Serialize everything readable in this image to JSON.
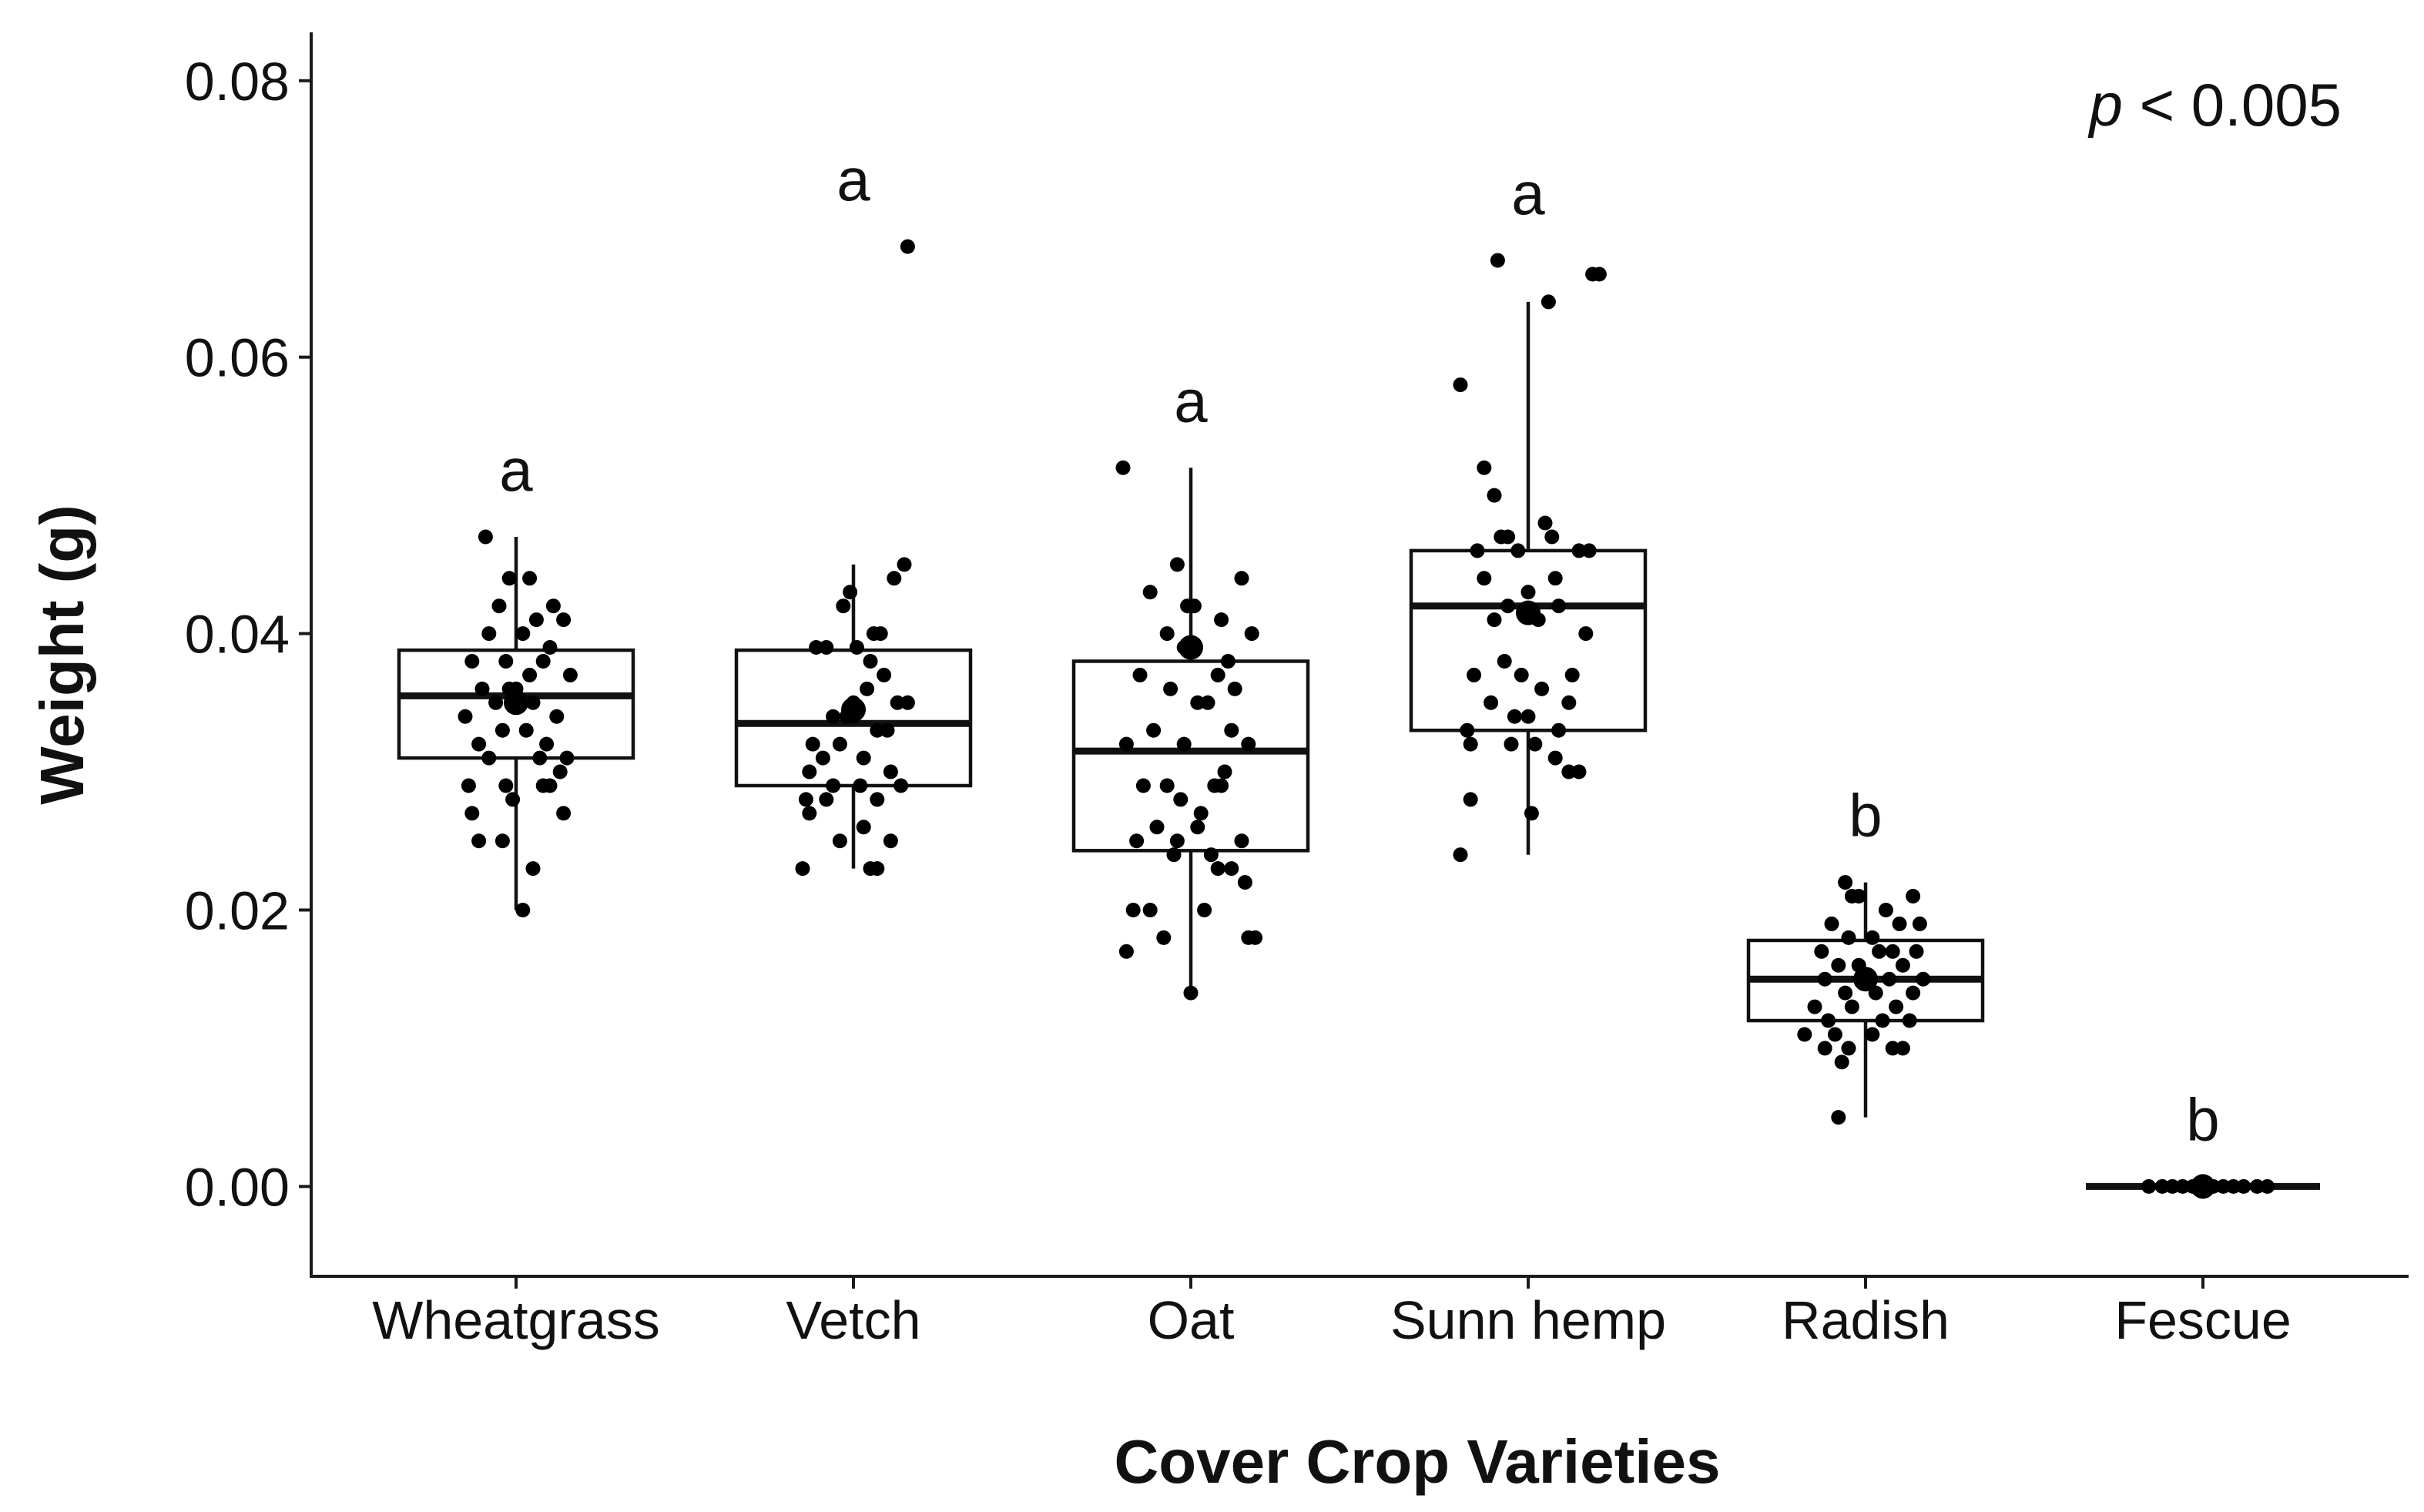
{
  "chart_data": {
    "type": "boxplot",
    "xlabel": "Cover Crop Varieties",
    "ylabel": "Weight (g)",
    "ylim": [
      -0.0065,
      0.0835
    ],
    "yticks": [
      0.0,
      0.02,
      0.04,
      0.06,
      0.08
    ],
    "ytick_labels": [
      "0.00",
      "0.02",
      "0.04",
      "0.06",
      "0.08"
    ],
    "annotation": {
      "p_label": "p",
      "p_rest": "< 0.005"
    },
    "colors": {
      "box_fill": "#ffffff",
      "stroke": "#111111",
      "points": "#000000"
    },
    "categories": [
      "Wheatgrass",
      "Vetch",
      "Oat",
      "Sunn hemp",
      "Radish",
      "Fescue"
    ],
    "groups": [
      {
        "name": "Wheatgrass",
        "letter": "a",
        "whisker_low": 0.02,
        "q1": 0.031,
        "median": 0.0355,
        "q3": 0.0388,
        "whisker_high": 0.047,
        "mean": 0.035,
        "points": [
          [
            -0.09,
            0.047
          ],
          [
            0.04,
            0.044
          ],
          [
            -0.02,
            0.044
          ],
          [
            0.11,
            0.042
          ],
          [
            0.06,
            0.041
          ],
          [
            -0.05,
            0.042
          ],
          [
            0.14,
            0.041
          ],
          [
            -0.08,
            0.04
          ],
          [
            0.02,
            0.04
          ],
          [
            0.1,
            0.039
          ],
          [
            -0.13,
            0.038
          ],
          [
            -0.03,
            0.038
          ],
          [
            0.08,
            0.038
          ],
          [
            0.16,
            0.037
          ],
          [
            -0.1,
            0.036
          ],
          [
            0.0,
            0.036
          ],
          [
            0.05,
            0.035
          ],
          [
            -0.06,
            0.035
          ],
          [
            0.12,
            0.034
          ],
          [
            -0.15,
            0.034
          ],
          [
            0.03,
            0.033
          ],
          [
            -0.04,
            0.033
          ],
          [
            0.09,
            0.032
          ],
          [
            -0.11,
            0.032
          ],
          [
            0.15,
            0.031
          ],
          [
            0.07,
            0.031
          ],
          [
            -0.08,
            0.031
          ],
          [
            0.13,
            0.03
          ],
          [
            -0.14,
            0.029
          ],
          [
            -0.03,
            0.029
          ],
          [
            0.08,
            0.029
          ],
          [
            0.1,
            0.029
          ],
          [
            -0.01,
            0.028
          ],
          [
            0.14,
            0.027
          ],
          [
            -0.13,
            0.027
          ],
          [
            -0.11,
            0.025
          ],
          [
            -0.04,
            0.025
          ],
          [
            0.05,
            0.023
          ],
          [
            0.02,
            0.02
          ],
          [
            0.0,
            0.035
          ],
          [
            -0.02,
            0.036
          ],
          [
            0.04,
            0.037
          ]
        ]
      },
      {
        "name": "Vetch",
        "letter": "a",
        "whisker_low": 0.023,
        "q1": 0.029,
        "median": 0.0335,
        "q3": 0.0388,
        "whisker_high": 0.045,
        "mean": 0.0345,
        "points": [
          [
            0.16,
            0.068
          ],
          [
            0.15,
            0.045
          ],
          [
            0.12,
            0.044
          ],
          [
            -0.01,
            0.043
          ],
          [
            -0.03,
            0.042
          ],
          [
            0.06,
            0.04
          ],
          [
            0.08,
            0.04
          ],
          [
            -0.08,
            0.039
          ],
          [
            0.01,
            0.039
          ],
          [
            -0.11,
            0.039
          ],
          [
            0.05,
            0.038
          ],
          [
            0.09,
            0.037
          ],
          [
            0.13,
            0.035
          ],
          [
            0.16,
            0.035
          ],
          [
            0.0,
            0.035
          ],
          [
            -0.06,
            0.034
          ],
          [
            -0.02,
            0.034
          ],
          [
            0.07,
            0.033
          ],
          [
            0.1,
            0.033
          ],
          [
            -0.12,
            0.032
          ],
          [
            -0.04,
            0.032
          ],
          [
            0.03,
            0.031
          ],
          [
            -0.09,
            0.031
          ],
          [
            0.11,
            0.03
          ],
          [
            0.14,
            0.029
          ],
          [
            -0.13,
            0.03
          ],
          [
            -0.06,
            0.029
          ],
          [
            0.02,
            0.029
          ],
          [
            -0.08,
            0.028
          ],
          [
            -0.14,
            0.028
          ],
          [
            0.07,
            0.028
          ],
          [
            -0.13,
            0.027
          ],
          [
            0.03,
            0.026
          ],
          [
            0.11,
            0.025
          ],
          [
            -0.04,
            0.025
          ],
          [
            0.07,
            0.023
          ],
          [
            0.05,
            0.023
          ],
          [
            -0.15,
            0.023
          ],
          [
            0.0,
            0.034
          ],
          [
            0.04,
            0.036
          ]
        ]
      },
      {
        "name": "Oat",
        "letter": "a",
        "whisker_low": 0.014,
        "q1": 0.0243,
        "median": 0.0315,
        "q3": 0.038,
        "whisker_high": 0.052,
        "mean": 0.039,
        "points": [
          [
            -0.2,
            0.052
          ],
          [
            -0.04,
            0.045
          ],
          [
            0.15,
            0.044
          ],
          [
            -0.12,
            0.043
          ],
          [
            -0.01,
            0.042
          ],
          [
            0.01,
            0.042
          ],
          [
            0.09,
            0.041
          ],
          [
            -0.07,
            0.04
          ],
          [
            0.18,
            0.04
          ],
          [
            -0.02,
            0.039
          ],
          [
            0.11,
            0.038
          ],
          [
            -0.15,
            0.037
          ],
          [
            0.08,
            0.037
          ],
          [
            0.13,
            0.036
          ],
          [
            -0.06,
            0.036
          ],
          [
            0.02,
            0.035
          ],
          [
            0.05,
            0.035
          ],
          [
            -0.11,
            0.033
          ],
          [
            0.12,
            0.033
          ],
          [
            -0.19,
            0.032
          ],
          [
            -0.02,
            0.032
          ],
          [
            0.17,
            0.032
          ],
          [
            0.1,
            0.03
          ],
          [
            0.07,
            0.029
          ],
          [
            -0.14,
            0.029
          ],
          [
            -0.07,
            0.029
          ],
          [
            0.09,
            0.029
          ],
          [
            -0.03,
            0.028
          ],
          [
            0.03,
            0.027
          ],
          [
            -0.1,
            0.026
          ],
          [
            0.02,
            0.026
          ],
          [
            -0.04,
            0.025
          ],
          [
            -0.16,
            0.025
          ],
          [
            0.15,
            0.025
          ],
          [
            0.06,
            0.024
          ],
          [
            -0.05,
            0.024
          ],
          [
            0.12,
            0.023
          ],
          [
            0.08,
            0.023
          ],
          [
            0.16,
            0.022
          ],
          [
            -0.12,
            0.02
          ],
          [
            -0.17,
            0.02
          ],
          [
            0.04,
            0.02
          ],
          [
            0.17,
            0.018
          ],
          [
            0.19,
            0.018
          ],
          [
            -0.08,
            0.018
          ],
          [
            -0.19,
            0.017
          ],
          [
            0.0,
            0.014
          ],
          [
            0.0,
            0.039
          ]
        ]
      },
      {
        "name": "Sunn hemp",
        "letter": "a",
        "whisker_low": 0.024,
        "q1": 0.033,
        "median": 0.042,
        "q3": 0.046,
        "whisker_high": 0.064,
        "mean": 0.0415,
        "points": [
          [
            -0.09,
            0.067
          ],
          [
            0.19,
            0.066
          ],
          [
            0.21,
            0.066
          ],
          [
            0.06,
            0.064
          ],
          [
            -0.2,
            0.058
          ],
          [
            -0.13,
            0.052
          ],
          [
            -0.1,
            0.05
          ],
          [
            0.05,
            0.048
          ],
          [
            -0.06,
            0.047
          ],
          [
            -0.08,
            0.047
          ],
          [
            0.07,
            0.047
          ],
          [
            0.15,
            0.046
          ],
          [
            0.18,
            0.046
          ],
          [
            -0.15,
            0.046
          ],
          [
            -0.03,
            0.046
          ],
          [
            0.08,
            0.044
          ],
          [
            -0.13,
            0.044
          ],
          [
            0.0,
            0.043
          ],
          [
            -0.06,
            0.042
          ],
          [
            0.09,
            0.042
          ],
          [
            -0.1,
            0.041
          ],
          [
            0.03,
            0.041
          ],
          [
            0.17,
            0.04
          ],
          [
            -0.07,
            0.038
          ],
          [
            -0.02,
            0.037
          ],
          [
            0.13,
            0.037
          ],
          [
            -0.16,
            0.037
          ],
          [
            0.04,
            0.036
          ],
          [
            -0.11,
            0.035
          ],
          [
            0.12,
            0.035
          ],
          [
            0.0,
            0.034
          ],
          [
            -0.04,
            0.034
          ],
          [
            0.09,
            0.033
          ],
          [
            -0.18,
            0.033
          ],
          [
            -0.05,
            0.032
          ],
          [
            0.02,
            0.032
          ],
          [
            0.08,
            0.031
          ],
          [
            -0.17,
            0.032
          ],
          [
            0.15,
            0.03
          ],
          [
            0.12,
            0.03
          ],
          [
            -0.17,
            0.028
          ],
          [
            0.01,
            0.027
          ],
          [
            -0.2,
            0.024
          ],
          [
            0.0,
            0.0415
          ]
        ]
      },
      {
        "name": "Radish",
        "letter": "b",
        "whisker_low": 0.005,
        "q1": 0.012,
        "median": 0.015,
        "q3": 0.0178,
        "whisker_high": 0.022,
        "mean": 0.015,
        "points": [
          [
            -0.06,
            0.022
          ],
          [
            -0.02,
            0.021
          ],
          [
            -0.04,
            0.021
          ],
          [
            0.14,
            0.021
          ],
          [
            0.06,
            0.02
          ],
          [
            -0.1,
            0.019
          ],
          [
            0.1,
            0.019
          ],
          [
            -0.05,
            0.018
          ],
          [
            0.16,
            0.019
          ],
          [
            0.02,
            0.018
          ],
          [
            -0.13,
            0.017
          ],
          [
            0.08,
            0.017
          ],
          [
            0.04,
            0.017
          ],
          [
            0.15,
            0.017
          ],
          [
            -0.08,
            0.016
          ],
          [
            -0.02,
            0.016
          ],
          [
            0.11,
            0.016
          ],
          [
            0.17,
            0.015
          ],
          [
            -0.12,
            0.015
          ],
          [
            0.0,
            0.015
          ],
          [
            0.07,
            0.015
          ],
          [
            -0.06,
            0.014
          ],
          [
            0.14,
            0.014
          ],
          [
            0.03,
            0.014
          ],
          [
            -0.15,
            0.013
          ],
          [
            -0.04,
            0.013
          ],
          [
            0.09,
            0.013
          ],
          [
            -0.11,
            0.012
          ],
          [
            0.05,
            0.012
          ],
          [
            0.13,
            0.012
          ],
          [
            -0.18,
            0.011
          ],
          [
            -0.09,
            0.011
          ],
          [
            0.02,
            0.011
          ],
          [
            0.08,
            0.01
          ],
          [
            0.11,
            0.01
          ],
          [
            -0.05,
            0.01
          ],
          [
            -0.12,
            0.01
          ],
          [
            -0.07,
            0.009
          ],
          [
            -0.08,
            0.005
          ],
          [
            0.0,
            0.015
          ]
        ]
      },
      {
        "name": "Fescue",
        "letter": "b",
        "whisker_low": 0.0,
        "q1": 0.0,
        "median": 0.0,
        "q3": 0.0,
        "whisker_high": 0.0,
        "mean": 0.0,
        "points": [
          [
            -0.16,
            0.0
          ],
          [
            -0.12,
            0.0
          ],
          [
            -0.09,
            0.0
          ],
          [
            -0.06,
            0.0
          ],
          [
            -0.03,
            0.0
          ],
          [
            0.0,
            0.0
          ],
          [
            0.03,
            0.0
          ],
          [
            0.06,
            0.0
          ],
          [
            0.09,
            0.0
          ],
          [
            0.12,
            0.0
          ],
          [
            0.16,
            0.0
          ],
          [
            0.19,
            0.0
          ],
          [
            0.0,
            0.0
          ]
        ]
      }
    ]
  }
}
